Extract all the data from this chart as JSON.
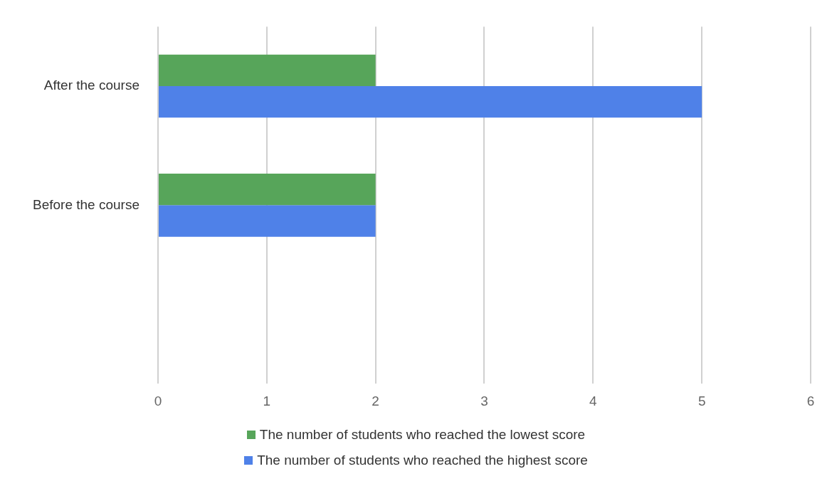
{
  "chart_data": {
    "type": "bar",
    "orientation": "horizontal",
    "categories": [
      "After the course",
      "Before the course",
      null
    ],
    "series": [
      {
        "name": "The number of students who reached the lowest score",
        "color": "#57a55a",
        "values": [
          2,
          2,
          null
        ]
      },
      {
        "name": "The number of students who reached the highest score",
        "color": "#4f81e8",
        "values": [
          5,
          2,
          null
        ]
      }
    ],
    "xlim": [
      0,
      6
    ],
    "xticks": [
      0,
      1,
      2,
      3,
      4,
      5,
      6
    ],
    "grid": "x",
    "legend": "bottom"
  }
}
